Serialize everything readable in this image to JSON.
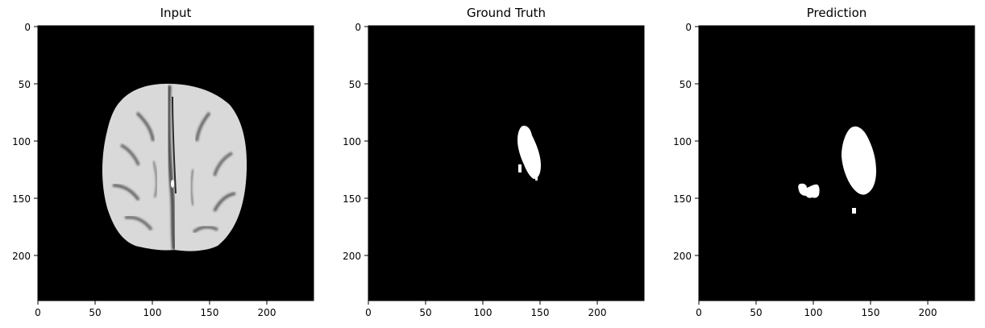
{
  "figure": {
    "panels": [
      {
        "title": "Input",
        "image_description": "grayscale axial MRI brain slice on black background",
        "x_ticks": [
          "0",
          "50",
          "100",
          "150",
          "200"
        ],
        "y_ticks": [
          "0",
          "50",
          "100",
          "150",
          "200"
        ]
      },
      {
        "title": "Ground Truth",
        "image_description": "binary mask: single white lesion on black",
        "x_ticks": [
          "0",
          "50",
          "100",
          "150",
          "200"
        ],
        "y_ticks": [
          "0",
          "50",
          "100",
          "150",
          "200"
        ]
      },
      {
        "title": "Prediction",
        "image_description": "binary mask: white lesion plus small blobs on black",
        "x_ticks": [
          "0",
          "50",
          "100",
          "150",
          "200"
        ],
        "y_ticks": [
          "0",
          "50",
          "100",
          "150",
          "200"
        ]
      }
    ],
    "axis_range": [
      0,
      240
    ],
    "colors": {
      "background": "#000000",
      "mask": "#ffffff",
      "tissue": "#d8d8d8"
    }
  }
}
